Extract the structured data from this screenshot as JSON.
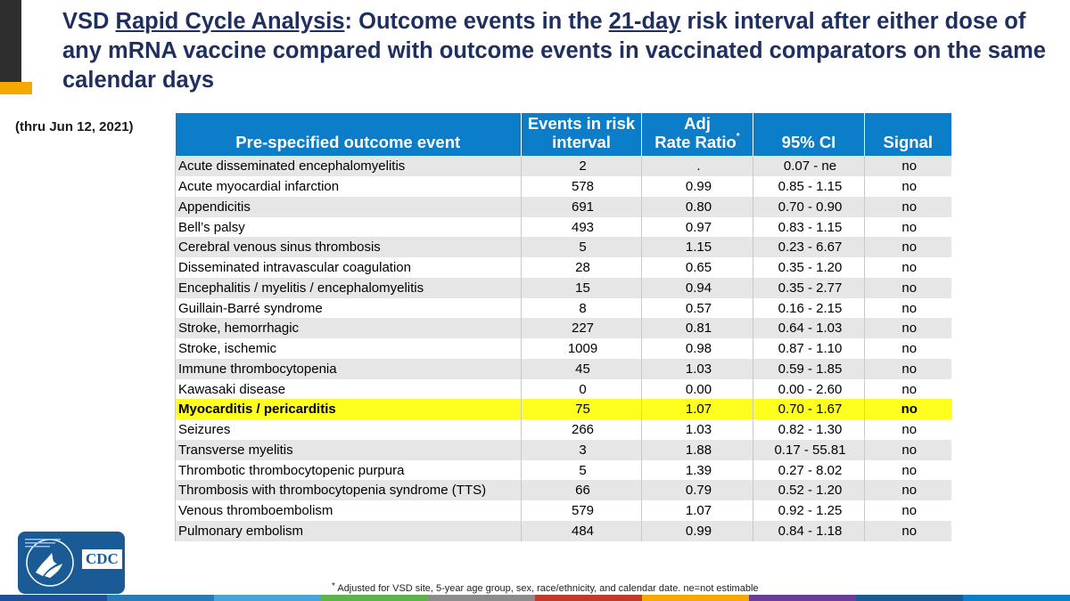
{
  "title": {
    "part1": "VSD ",
    "underlined1": "Rapid Cycle Analysis",
    "part2": ": Outcome events in the ",
    "underlined2": "21-day",
    "part3": " risk interval after either dose of any mRNA vaccine compared with outcome events in vaccinated comparators on the same calendar days"
  },
  "date_note": "(thru Jun 12, 2021)",
  "table": {
    "headers": {
      "outcome": "Pre-specified outcome event",
      "events_line1": "Events in risk",
      "events_line2": "interval",
      "rr_line1": "Adj",
      "rr_line2": "Rate Ratio",
      "rr_mark": "*",
      "ci": "95% CI",
      "signal": "Signal"
    },
    "rows": [
      {
        "event": "Acute disseminated encephalomyelitis",
        "count": "2",
        "rr": ".",
        "ci": "0.07 - ne",
        "signal": "no"
      },
      {
        "event": "Acute myocardial infarction",
        "count": "578",
        "rr": "0.99",
        "ci": "0.85 - 1.15",
        "signal": "no"
      },
      {
        "event": "Appendicitis",
        "count": "691",
        "rr": "0.80",
        "ci": "0.70 - 0.90",
        "signal": "no"
      },
      {
        "event": "Bell’s palsy",
        "count": "493",
        "rr": "0.97",
        "ci": "0.83 - 1.15",
        "signal": "no"
      },
      {
        "event": "Cerebral venous sinus thrombosis",
        "count": "5",
        "rr": "1.15",
        "ci": "0.23 - 6.67",
        "signal": "no"
      },
      {
        "event": "Disseminated intravascular coagulation",
        "count": "28",
        "rr": "0.65",
        "ci": "0.35 - 1.20",
        "signal": "no"
      },
      {
        "event": "Encephalitis / myelitis / encephalomyelitis",
        "count": "15",
        "rr": "0.94",
        "ci": "0.35 - 2.77",
        "signal": "no"
      },
      {
        "event": "Guillain-Barré syndrome",
        "count": "8",
        "rr": "0.57",
        "ci": "0.16 - 2.15",
        "signal": "no"
      },
      {
        "event": "Stroke, hemorrhagic",
        "count": "227",
        "rr": "0.81",
        "ci": "0.64 - 1.03",
        "signal": "no"
      },
      {
        "event": "Stroke, ischemic",
        "count": "1009",
        "rr": "0.98",
        "ci": "0.87 - 1.10",
        "signal": "no"
      },
      {
        "event": "Immune thrombocytopenia",
        "count": "45",
        "rr": "1.03",
        "ci": "0.59 - 1.85",
        "signal": "no"
      },
      {
        "event": "Kawasaki disease",
        "count": "0",
        "rr": "0.00",
        "ci": "0.00 - 2.60",
        "signal": "no"
      },
      {
        "event": "Myocarditis / pericarditis",
        "count": "75",
        "rr": "1.07",
        "ci": "0.70 - 1.67",
        "signal": "no"
      },
      {
        "event": "Seizures",
        "count": "266",
        "rr": "1.03",
        "ci": "0.82 - 1.30",
        "signal": "no"
      },
      {
        "event": "Transverse myelitis",
        "count": "3",
        "rr": "1.88",
        "ci": "0.17 - 55.81",
        "signal": "no"
      },
      {
        "event": "Thrombotic thrombocytopenic purpura",
        "count": "5",
        "rr": "1.39",
        "ci": "0.27 - 8.02",
        "signal": "no"
      },
      {
        "event": "Thrombosis with thrombocytopenia syndrome (TTS)",
        "count": "66",
        "rr": "0.79",
        "ci": "0.52 - 1.20",
        "signal": "no"
      },
      {
        "event": "Venous thromboembolism",
        "count": "579",
        "rr": "1.07",
        "ci": "0.92 - 1.25",
        "signal": "no"
      },
      {
        "event": "Pulmonary embolism",
        "count": "484",
        "rr": "0.99",
        "ci": "0.84 - 1.18",
        "signal": "no"
      }
    ],
    "highlight_row": "Myocarditis / pericarditis"
  },
  "footnote": {
    "mark": "*",
    "text": " Adjusted for VSD site, 5-year age group, sex, race/ethnicity, and calendar date. ne=not estimable"
  },
  "logo": {
    "text": "CDC",
    "icon": "hhs-eagle-icon"
  },
  "colors": {
    "title": "#1f2f5f",
    "header_bg": "#0b7dc9",
    "highlight": "#ffff1f",
    "accent": "#f5a800",
    "logo_bg": "#1a5b96"
  }
}
